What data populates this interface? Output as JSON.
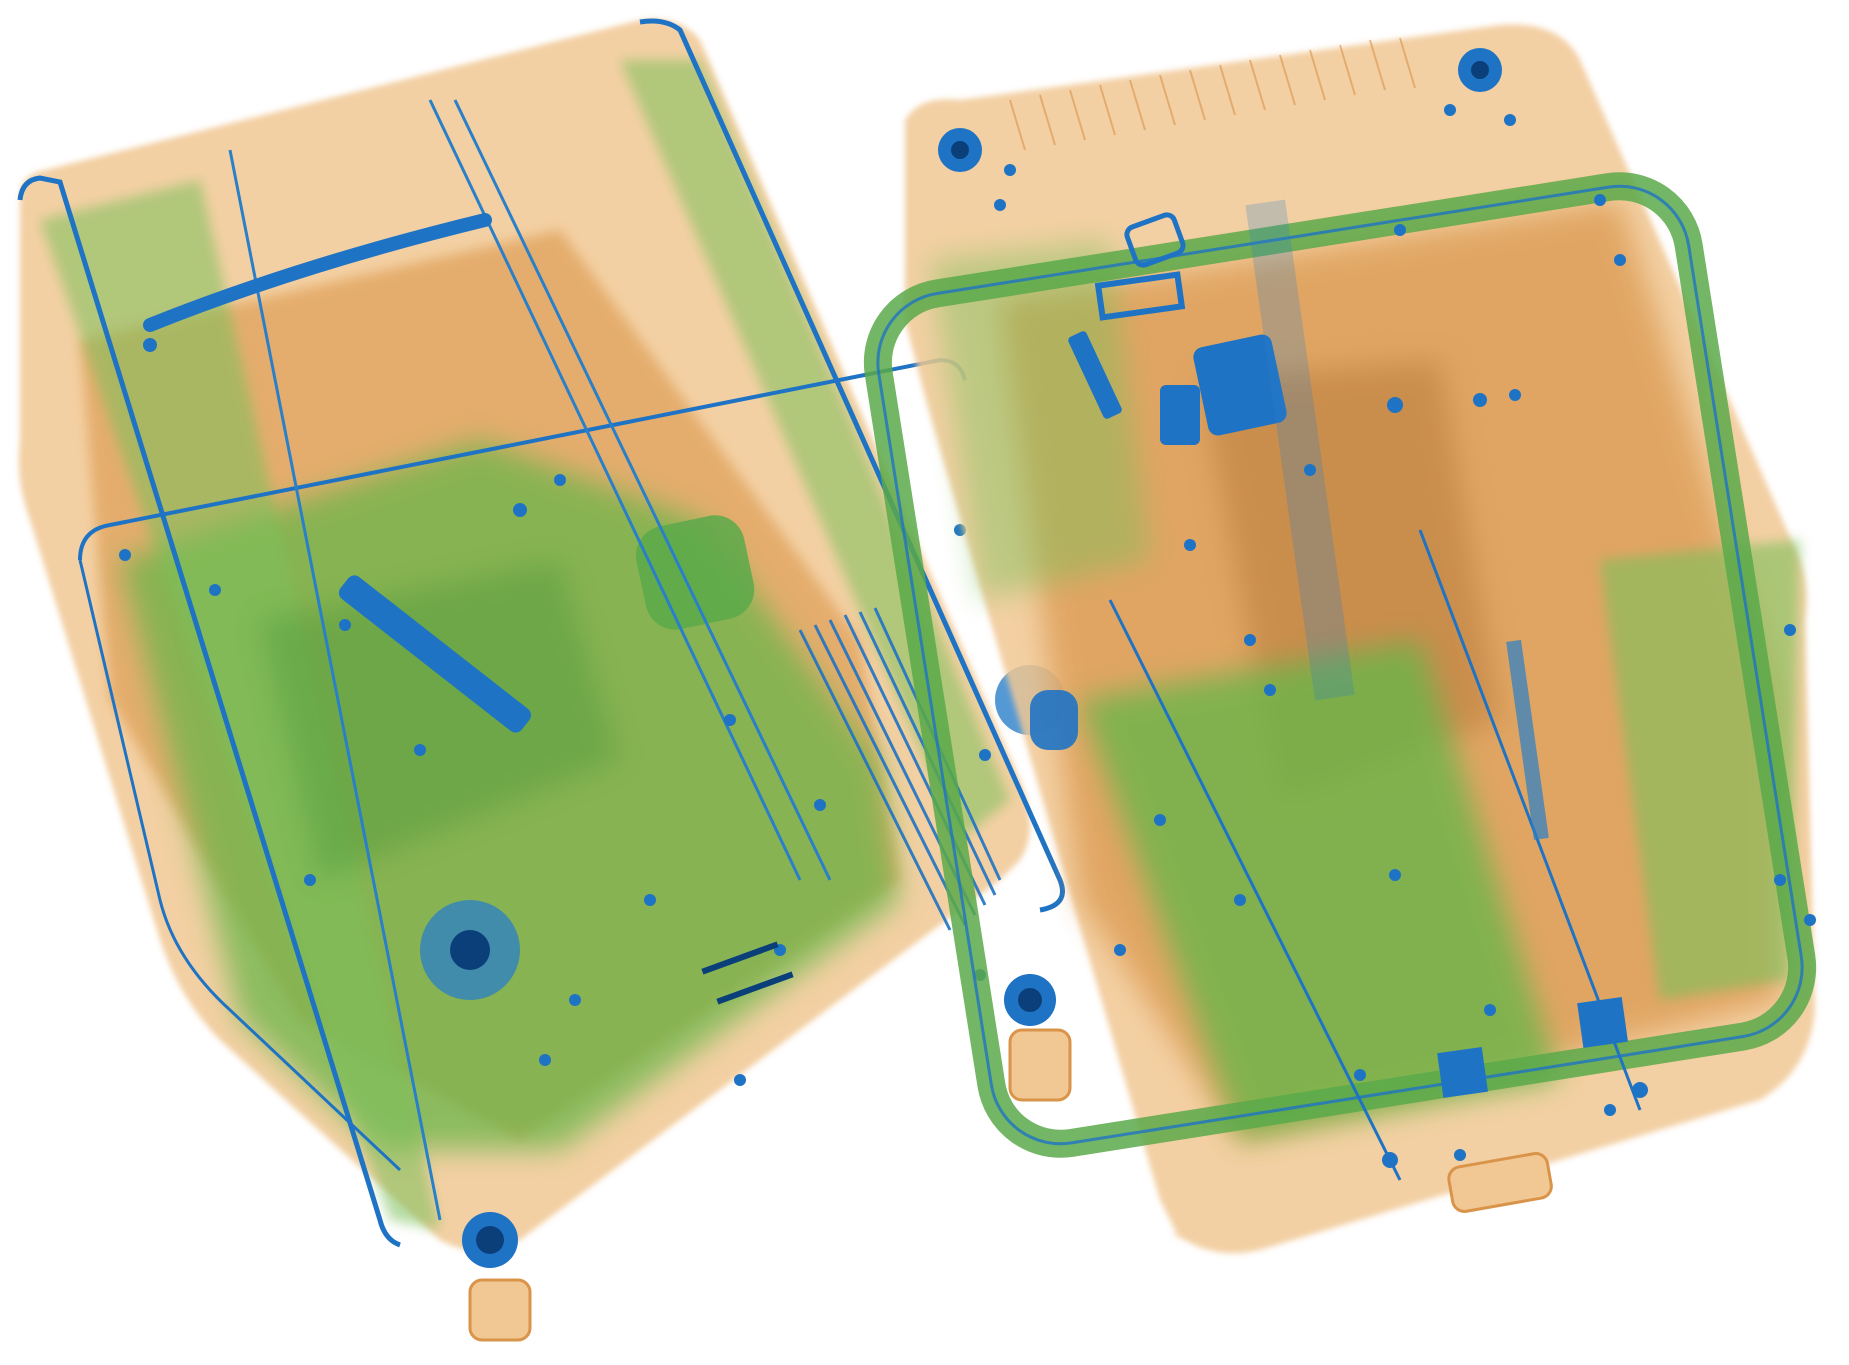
{
  "scene": {
    "kind": "x-ray-baggage-scan",
    "background": "#ffffff",
    "palette": {
      "organic": "#d9944a",
      "organic_light": "#f1c894",
      "mixed": "#6ab54a",
      "mixed_light": "#9fd07a",
      "metal": "#1f73c4",
      "metal_dark": "#0b3f7a"
    },
    "objects": [
      {
        "name": "left-suitcase",
        "icon": "suitcase-icon"
      },
      {
        "name": "right-suitcase",
        "icon": "suitcase-icon"
      }
    ]
  }
}
